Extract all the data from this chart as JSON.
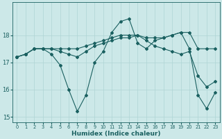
{
  "xlabel": "Humidex (Indice chaleur)",
  "xlim": [
    -0.5,
    23.5
  ],
  "ylim": [
    14.8,
    19.2
  ],
  "yticks": [
    15,
    16,
    17,
    18
  ],
  "xticks": [
    0,
    1,
    2,
    3,
    4,
    5,
    6,
    7,
    8,
    9,
    10,
    11,
    12,
    13,
    14,
    15,
    16,
    17,
    18,
    19,
    20,
    21,
    22,
    23
  ],
  "bg_color": "#cce8e8",
  "grid_color": "#aed4d4",
  "line_color": "#1a6060",
  "series": [
    {
      "x": [
        0,
        1,
        2,
        3,
        4,
        5,
        6,
        7,
        8,
        9,
        10,
        11,
        12,
        13,
        14,
        15,
        16,
        17,
        18,
        19,
        20,
        21,
        22,
        23
      ],
      "y": [
        17.2,
        17.3,
        17.5,
        17.5,
        17.3,
        16.9,
        16.0,
        15.2,
        15.8,
        17.0,
        17.4,
        18.1,
        18.5,
        18.6,
        17.7,
        17.5,
        17.8,
        17.9,
        18.0,
        18.1,
        17.5,
        15.8,
        15.3,
        15.9
      ]
    },
    {
      "x": [
        0,
        1,
        2,
        3,
        4,
        5,
        6,
        7,
        8,
        9,
        10,
        11,
        12,
        13,
        14,
        15,
        16,
        17,
        18,
        19,
        20,
        21,
        22,
        23
      ],
      "y": [
        17.2,
        17.3,
        17.5,
        17.5,
        17.5,
        17.5,
        17.5,
        17.5,
        17.6,
        17.7,
        17.8,
        17.9,
        18.0,
        18.0,
        18.0,
        17.9,
        17.9,
        17.9,
        18.0,
        18.1,
        18.1,
        17.5,
        17.5,
        17.5
      ]
    },
    {
      "x": [
        0,
        1,
        2,
        3,
        4,
        5,
        6,
        7,
        8,
        9,
        10,
        11,
        12,
        13,
        14,
        15,
        16,
        17,
        18,
        19,
        20,
        21,
        22,
        23
      ],
      "y": [
        17.2,
        17.3,
        17.5,
        17.5,
        17.5,
        17.4,
        17.3,
        17.2,
        17.4,
        17.6,
        17.7,
        17.8,
        17.9,
        17.9,
        18.0,
        17.8,
        17.6,
        17.5,
        17.4,
        17.3,
        17.4,
        16.5,
        16.1,
        16.3
      ]
    }
  ]
}
